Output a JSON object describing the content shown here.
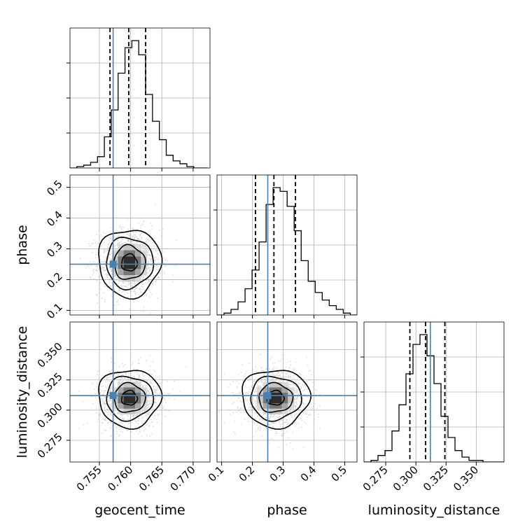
{
  "chart_data": {
    "type": "corner",
    "parameters": [
      {
        "name": "geocent_time",
        "label": "geocent_time",
        "range": [
          0.7503,
          0.7727
        ],
        "ticks": [
          0.755,
          0.76,
          0.765,
          0.77
        ],
        "tick_labels": [
          "0.755",
          "0.760",
          "0.765",
          "0.770"
        ],
        "truth": 0.7572,
        "quantiles": [
          0.7567,
          0.7597,
          0.7624
        ],
        "hist_edges_start": 0.7503,
        "hist_bin_width": 0.0011,
        "hist_counts": [
          0,
          1,
          2,
          4,
          8,
          22,
          41,
          67,
          85,
          90,
          80,
          52,
          33,
          20,
          9,
          5,
          3,
          1,
          0,
          0
        ]
      },
      {
        "name": "phase",
        "label": "phase",
        "range": [
          0.085,
          0.54
        ],
        "ticks": [
          0.1,
          0.2,
          0.3,
          0.4,
          0.5
        ],
        "tick_labels": [
          "0.1",
          "0.2",
          "0.3",
          "0.4",
          "0.5"
        ],
        "truth": 0.25,
        "quantiles": [
          0.21,
          0.27,
          0.34
        ],
        "hist_edges_start": 0.085,
        "hist_bin_width": 0.0228,
        "hist_counts": [
          0,
          1,
          3,
          7,
          14,
          24,
          39,
          59,
          68,
          66,
          58,
          45,
          29,
          18,
          12,
          8,
          5,
          3,
          1,
          0
        ]
      },
      {
        "name": "luminosity_distance",
        "label": "luminosity_distance",
        "range": [
          0.257,
          0.373
        ],
        "ticks": [
          0.275,
          0.3,
          0.325,
          0.35
        ],
        "tick_labels": [
          "0.275",
          "0.300",
          "0.325",
          "0.350"
        ],
        "truth": 0.312,
        "quantiles": [
          0.295,
          0.308,
          0.324
        ],
        "hist_edges_start": 0.257,
        "hist_bin_width": 0.0058,
        "hist_counts": [
          0,
          1,
          4,
          7,
          19,
          35,
          54,
          72,
          78,
          65,
          48,
          28,
          15,
          7,
          3,
          1,
          1,
          0,
          0,
          0
        ]
      }
    ],
    "pairs": [
      {
        "x": "geocent_time",
        "y": "phase",
        "center": [
          0.7598,
          0.255
        ],
        "sigma": [
          0.0025,
          0.055
        ],
        "contour_sigmas": [
          0.5,
          1.0,
          1.5,
          2.0
        ]
      },
      {
        "x": "geocent_time",
        "y": "luminosity_distance",
        "center": [
          0.7598,
          0.31
        ],
        "sigma": [
          0.0025,
          0.012
        ],
        "contour_sigmas": [
          0.5,
          1.0,
          1.5,
          2.0
        ]
      },
      {
        "x": "phase",
        "y": "luminosity_distance",
        "center": [
          0.275,
          0.31
        ],
        "sigma": [
          0.055,
          0.012
        ],
        "contour_sigmas": [
          0.5,
          1.0,
          1.5,
          2.0
        ]
      }
    ],
    "grid": true,
    "colors": {
      "truth": "#4682b4",
      "hist": "#000000",
      "quantile": "#000000",
      "grid": "#b0b0b0",
      "points": "#bdbdbd"
    }
  }
}
